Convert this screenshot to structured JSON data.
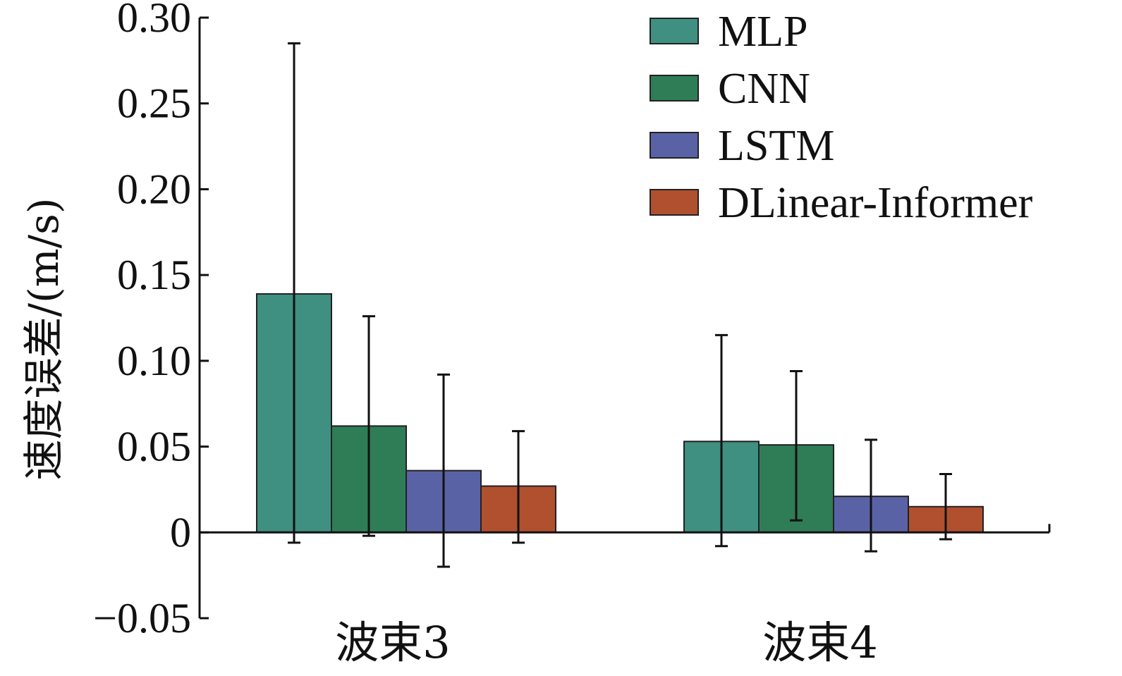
{
  "chart_data": {
    "type": "bar",
    "title": "",
    "xlabel": "",
    "ylabel": "速度误差/(m/s)",
    "ylim": [
      -0.05,
      0.3
    ],
    "yticks": [
      -0.05,
      0,
      0.05,
      0.1,
      0.15,
      0.2,
      0.25,
      0.3
    ],
    "ytick_labels": [
      "−0.05",
      "0",
      "0.05",
      "0.10",
      "0.15",
      "0.20",
      "0.25",
      "0.30"
    ],
    "categories": [
      "波束3",
      "波束4"
    ],
    "grid": false,
    "legend_position": "top-right",
    "series": [
      {
        "name": "MLP",
        "color": "#3f9080",
        "values": [
          0.139,
          0.053
        ],
        "err_low": [
          -0.006,
          -0.008
        ],
        "err_high": [
          0.285,
          0.115
        ]
      },
      {
        "name": "CNN",
        "color": "#2e7d57",
        "values": [
          0.062,
          0.051
        ],
        "err_low": [
          -0.002,
          0.007
        ],
        "err_high": [
          0.126,
          0.094
        ]
      },
      {
        "name": "LSTM",
        "color": "#5a62a6",
        "values": [
          0.036,
          0.021
        ],
        "err_low": [
          -0.02,
          -0.011
        ],
        "err_high": [
          0.092,
          0.054
        ]
      },
      {
        "name": "DLinear-Informer",
        "color": "#b1502e",
        "values": [
          0.027,
          0.015
        ],
        "err_low": [
          -0.006,
          -0.004
        ],
        "err_high": [
          0.059,
          0.034
        ]
      }
    ]
  }
}
